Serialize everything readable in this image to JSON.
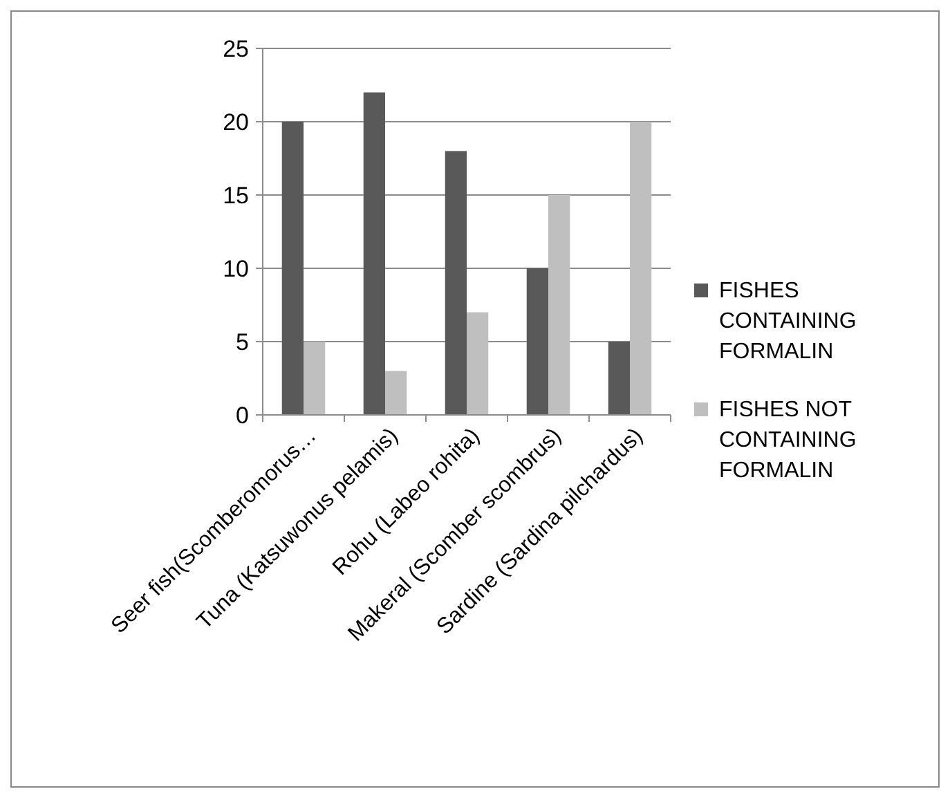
{
  "chart_data": {
    "type": "bar",
    "categories": [
      "Seer fish(Scomberomorus…",
      "Tuna (Katsuwonus pelamis)",
      "Rohu (Labeo rohita)",
      "Makeral (Scomber scombrus)",
      "Sardine (Sardina pilchardus)"
    ],
    "series": [
      {
        "name": "FISHES CONTAINING FORMALIN",
        "color": "#595959",
        "values": [
          20,
          22,
          18,
          10,
          5
        ]
      },
      {
        "name": "FISHES NOT CONTAINING FORMALIN",
        "color": "#bfbfbf",
        "values": [
          5,
          3,
          7,
          15,
          20
        ]
      }
    ],
    "ylim": [
      0,
      25
    ],
    "yticks": [
      0,
      5,
      10,
      15,
      20,
      25
    ],
    "grid": "y",
    "legend": "right"
  }
}
